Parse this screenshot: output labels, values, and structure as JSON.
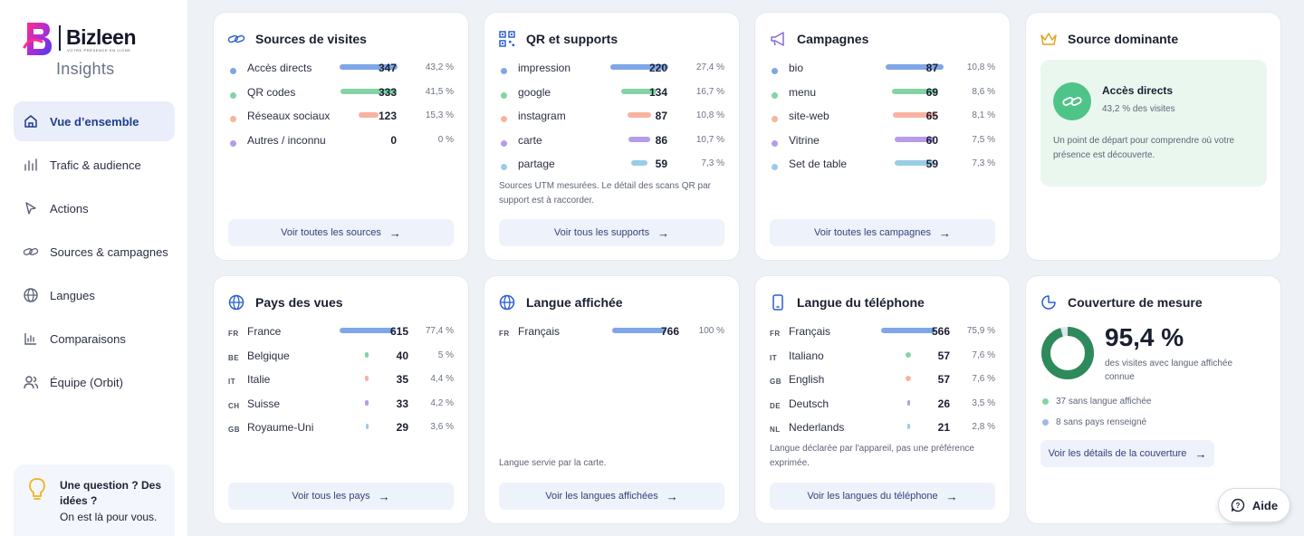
{
  "app": {
    "brand": "Bizleen",
    "tagline": "VOTRE PRÉSENCE EN LIGNE",
    "section": "Insights"
  },
  "colors": {
    "blue": "#7fa6e8",
    "green": "#84d3a5",
    "orange": "#f8b3a1",
    "purple": "#b79ce9",
    "lightblue": "#99cde6",
    "accent": "#1f3d91",
    "teal": "#2f8a5b"
  },
  "nav": [
    {
      "label": "Vue d’ensemble",
      "icon": "home-icon",
      "active": true
    },
    {
      "label": "Trafic & audience",
      "icon": "bar-chart-icon"
    },
    {
      "label": "Actions",
      "icon": "cursor-icon"
    },
    {
      "label": "Sources & campagnes",
      "icon": "link-icon"
    },
    {
      "label": "Langues",
      "icon": "globe-icon"
    },
    {
      "label": "Comparaisons",
      "icon": "chart-icon"
    },
    {
      "label": "Équipe (Orbit)",
      "icon": "users-icon"
    }
  ],
  "help": {
    "question": "Une question ? Des idées ?",
    "sub": "On est là pour vous."
  },
  "cards": {
    "sources": {
      "title": "Sources de visites",
      "rows": [
        {
          "label": "Accès directs",
          "value": "347",
          "pct": "43,2 %",
          "share": 0.432,
          "color": "blue"
        },
        {
          "label": "QR codes",
          "value": "333",
          "pct": "41,5 %",
          "share": 0.415,
          "color": "green"
        },
        {
          "label": "Réseaux sociaux",
          "value": "123",
          "pct": "15,3 %",
          "share": 0.153,
          "color": "orange"
        },
        {
          "label": "Autres / inconnu",
          "value": "0",
          "pct": "0 %",
          "share": 0,
          "color": "purple"
        }
      ],
      "button": "Voir toutes les sources"
    },
    "qr": {
      "title": "QR et supports",
      "rows": [
        {
          "label": "impression",
          "value": "220",
          "pct": "27,4 %",
          "share": 0.274,
          "color": "blue"
        },
        {
          "label": "google",
          "value": "134",
          "pct": "16,7 %",
          "share": 0.167,
          "color": "green"
        },
        {
          "label": "instagram",
          "value": "87",
          "pct": "10,8 %",
          "share": 0.108,
          "color": "orange"
        },
        {
          "label": "carte",
          "value": "86",
          "pct": "10,7 %",
          "share": 0.107,
          "color": "purple"
        },
        {
          "label": "partage",
          "value": "59",
          "pct": "7,3 %",
          "share": 0.073,
          "color": "lightblue"
        }
      ],
      "note": "Sources UTM mesurées. Le détail des scans QR par support est à raccorder.",
      "button": "Voir tous les supports"
    },
    "campagnes": {
      "title": "Campagnes",
      "rows": [
        {
          "label": "bio",
          "value": "87",
          "pct": "10,8 %",
          "share": 0.108,
          "color": "blue"
        },
        {
          "label": "menu",
          "value": "69",
          "pct": "8,6 %",
          "share": 0.086,
          "color": "green"
        },
        {
          "label": "site-web",
          "value": "65",
          "pct": "8,1 %",
          "share": 0.081,
          "color": "orange"
        },
        {
          "label": "Vitrine",
          "value": "60",
          "pct": "7,5 %",
          "share": 0.075,
          "color": "purple"
        },
        {
          "label": "Set de table",
          "value": "59",
          "pct": "7,3 %",
          "share": 0.073,
          "color": "lightblue"
        }
      ],
      "button": "Voir toutes les campagnes"
    },
    "dominante": {
      "title": "Source dominante",
      "name": "Accès directs",
      "sub": "43,2 % des visites",
      "text": "Un point de départ pour comprendre où votre présence est découverte."
    },
    "pays": {
      "title": "Pays des vues",
      "rows": [
        {
          "code": "FR",
          "label": "France",
          "value": "615",
          "pct": "77,4 %",
          "share": 0.774,
          "color": "blue"
        },
        {
          "code": "BE",
          "label": "Belgique",
          "value": "40",
          "pct": "5 %",
          "share": 0.05,
          "color": "green"
        },
        {
          "code": "IT",
          "label": "Italie",
          "value": "35",
          "pct": "4,4 %",
          "share": 0.044,
          "color": "orange"
        },
        {
          "code": "CH",
          "label": "Suisse",
          "value": "33",
          "pct": "4,2 %",
          "share": 0.042,
          "color": "purple"
        },
        {
          "code": "GB",
          "label": "Royaume-Uni",
          "value": "29",
          "pct": "3,6 %",
          "share": 0.036,
          "color": "lightblue"
        }
      ],
      "button": "Voir tous les pays"
    },
    "langue": {
      "title": "Langue affichée",
      "rows": [
        {
          "code": "FR",
          "label": "Français",
          "value": "766",
          "pct": "100 %",
          "share": 1.0,
          "color": "blue"
        }
      ],
      "note": "Langue servie par la carte.",
      "button": "Voir les langues affichées"
    },
    "telephone": {
      "title": "Langue du téléphone",
      "rows": [
        {
          "code": "FR",
          "label": "Français",
          "value": "566",
          "pct": "75,9 %",
          "share": 0.759,
          "color": "blue"
        },
        {
          "code": "IT",
          "label": "Italiano",
          "value": "57",
          "pct": "7,6 %",
          "share": 0.076,
          "color": "green"
        },
        {
          "code": "GB",
          "label": "English",
          "value": "57",
          "pct": "7,6 %",
          "share": 0.076,
          "color": "orange"
        },
        {
          "code": "DE",
          "label": "Deutsch",
          "value": "26",
          "pct": "3,5 %",
          "share": 0.035,
          "color": "purple"
        },
        {
          "code": "NL",
          "label": "Nederlands",
          "value": "21",
          "pct": "2,8 %",
          "share": 0.028,
          "color": "lightblue"
        }
      ],
      "note": "Langue déclarée par l'appareil, pas une préférence exprimée.",
      "button": "Voir les langues du téléphone"
    },
    "couverture": {
      "title": "Couverture de mesure",
      "value": "95,4 %",
      "share": 0.954,
      "sub": "des visites avec langue affichée connue",
      "line1": "37 sans langue affichée",
      "line2": "8 sans pays renseigné",
      "button": "Voir les détails de la couverture"
    }
  },
  "aide": "Aide"
}
